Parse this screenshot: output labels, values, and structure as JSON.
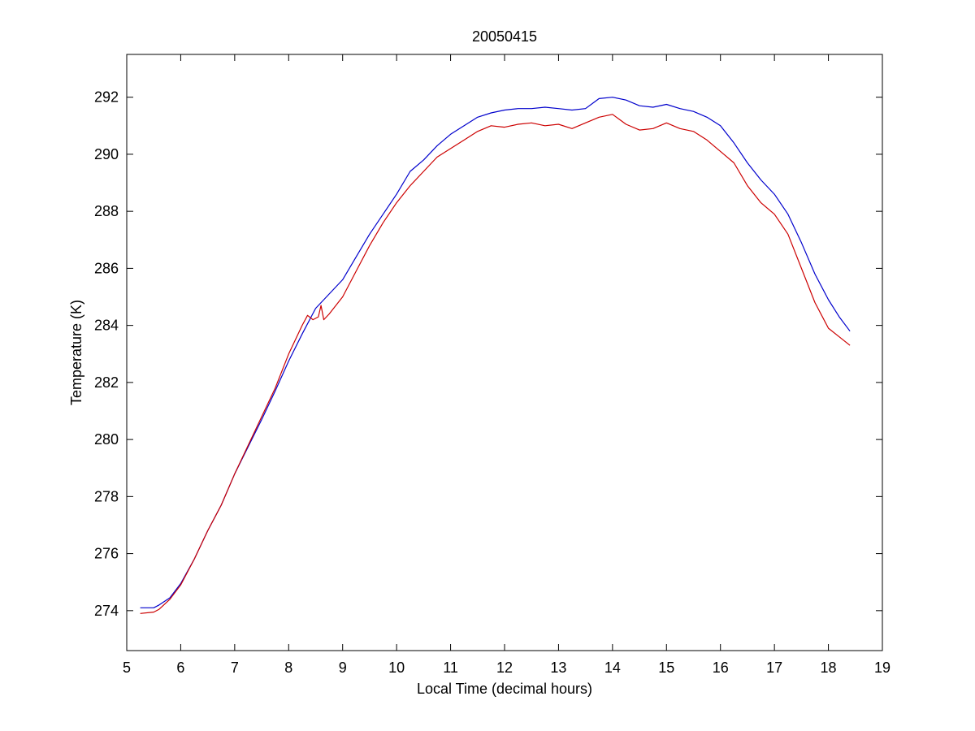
{
  "chart_data": {
    "type": "line",
    "title": "20050415",
    "xlabel": "Local Time (decimal hours)",
    "ylabel": "Temperature (K)",
    "xlim": [
      5,
      19
    ],
    "ylim": [
      272.6,
      293.5
    ],
    "xticks": [
      5,
      6,
      7,
      8,
      9,
      10,
      11,
      12,
      13,
      14,
      15,
      16,
      17,
      18,
      19
    ],
    "yticks": [
      274,
      276,
      278,
      280,
      282,
      284,
      286,
      288,
      290,
      292
    ],
    "xtick_labels": [
      "5",
      "6",
      "7",
      "8",
      "9",
      "10",
      "11",
      "12",
      "13",
      "14",
      "15",
      "16",
      "17",
      "18",
      "19"
    ],
    "ytick_labels": [
      "274",
      "276",
      "278",
      "280",
      "282",
      "284",
      "286",
      "288",
      "290",
      "292"
    ],
    "grid": false,
    "legend": "none",
    "series": [
      {
        "color": "#0000cc",
        "x": [
          5.25,
          5.5,
          5.6,
          5.8,
          6.0,
          6.25,
          6.5,
          6.75,
          7.0,
          7.25,
          7.5,
          7.75,
          8.0,
          8.25,
          8.5,
          8.75,
          9.0,
          9.25,
          9.5,
          9.75,
          10.0,
          10.25,
          10.5,
          10.75,
          11.0,
          11.25,
          11.5,
          11.75,
          12.0,
          12.25,
          12.5,
          12.75,
          13.0,
          13.25,
          13.5,
          13.75,
          14.0,
          14.25,
          14.5,
          14.75,
          15.0,
          15.25,
          15.5,
          15.75,
          16.0,
          16.25,
          16.5,
          16.75,
          17.0,
          17.25,
          17.5,
          17.75,
          18.0,
          18.2,
          18.4
        ],
        "y": [
          274.1,
          274.1,
          274.2,
          274.45,
          274.95,
          275.8,
          276.8,
          277.7,
          278.8,
          279.75,
          280.7,
          281.7,
          282.75,
          283.7,
          284.6,
          285.1,
          285.6,
          286.4,
          287.2,
          287.9,
          288.6,
          289.4,
          289.8,
          290.3,
          290.7,
          291.0,
          291.3,
          291.45,
          291.55,
          291.6,
          291.6,
          291.65,
          291.6,
          291.55,
          291.6,
          291.95,
          292.0,
          291.9,
          291.7,
          291.65,
          291.75,
          291.6,
          291.5,
          291.3,
          291.0,
          290.4,
          289.7,
          289.1,
          288.6,
          287.9,
          286.9,
          285.8,
          284.9,
          284.3,
          283.8
        ]
      },
      {
        "color": "#cc0000",
        "x": [
          5.25,
          5.5,
          5.6,
          5.8,
          6.0,
          6.25,
          6.5,
          6.75,
          7.0,
          7.25,
          7.5,
          7.75,
          8.0,
          8.25,
          8.35,
          8.45,
          8.55,
          8.6,
          8.65,
          8.75,
          9.0,
          9.25,
          9.5,
          9.75,
          10.0,
          10.25,
          10.5,
          10.75,
          11.0,
          11.25,
          11.5,
          11.75,
          12.0,
          12.25,
          12.5,
          12.75,
          13.0,
          13.25,
          13.5,
          13.75,
          14.0,
          14.25,
          14.5,
          14.75,
          15.0,
          15.25,
          15.5,
          15.75,
          16.0,
          16.25,
          16.5,
          16.75,
          17.0,
          17.25,
          17.5,
          17.75,
          18.0,
          18.2,
          18.4
        ],
        "y": [
          273.9,
          273.95,
          274.05,
          274.4,
          274.9,
          275.8,
          276.8,
          277.7,
          278.8,
          279.8,
          280.8,
          281.8,
          283.0,
          284.0,
          284.35,
          284.2,
          284.3,
          284.7,
          284.2,
          284.4,
          285.0,
          285.9,
          286.8,
          287.6,
          288.3,
          288.9,
          289.4,
          289.9,
          290.2,
          290.5,
          290.8,
          291.0,
          290.95,
          291.05,
          291.1,
          291.0,
          291.05,
          290.9,
          291.1,
          291.3,
          291.4,
          291.05,
          290.85,
          290.9,
          291.1,
          290.9,
          290.8,
          290.5,
          290.1,
          289.7,
          288.9,
          288.3,
          287.9,
          287.2,
          286.0,
          284.8,
          283.9,
          283.6,
          283.3
        ]
      }
    ]
  }
}
